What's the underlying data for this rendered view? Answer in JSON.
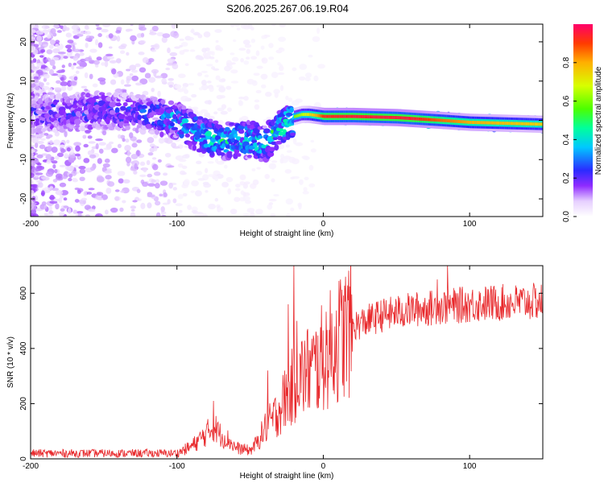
{
  "title": "S206.2025.267.06.19.R04",
  "chart_data": [
    {
      "type": "heatmap",
      "xlabel": "Height of straight line (km)",
      "ylabel": "Frequency (Hz)",
      "xlim": [
        -200,
        150
      ],
      "ylim": [
        -24.5,
        24.5
      ],
      "x_ticks": [
        -200,
        -100,
        0,
        100
      ],
      "y_ticks": [
        -20,
        -10,
        0,
        10,
        20
      ],
      "colorbar": {
        "label": "Normalized spectral amplitude",
        "range": [
          0,
          1
        ],
        "ticks": [
          "0.0",
          "0.2",
          "0.4",
          "0.6",
          "0.8"
        ],
        "tick_values": [
          0.0,
          0.2,
          0.4,
          0.6,
          0.8
        ]
      },
      "ridge_center_hz": [
        [
          -200,
          1.5
        ],
        [
          -150,
          2.5
        ],
        [
          -120,
          1.5
        ],
        [
          -100,
          0
        ],
        [
          -90,
          -2.5
        ],
        [
          -80,
          -4
        ],
        [
          -70,
          -5.5
        ],
        [
          -60,
          -5
        ],
        [
          -50,
          -5
        ],
        [
          -40,
          -6
        ],
        [
          -30,
          -2
        ],
        [
          -20,
          1
        ],
        [
          -15,
          1.5
        ],
        [
          -10,
          1.5
        ],
        [
          0,
          1
        ],
        [
          20,
          1
        ],
        [
          50,
          0.7
        ],
        [
          80,
          0
        ],
        [
          100,
          -0.5
        ],
        [
          150,
          -1
        ]
      ],
      "ridge_amplitude": [
        [
          -200,
          0.25
        ],
        [
          -120,
          0.3
        ],
        [
          -100,
          0.4
        ],
        [
          -70,
          0.5
        ],
        [
          -40,
          0.45
        ],
        [
          -25,
          0.55
        ],
        [
          -15,
          0.65
        ],
        [
          -5,
          0.8
        ],
        [
          0,
          0.92
        ],
        [
          20,
          0.95
        ],
        [
          60,
          0.95
        ],
        [
          75,
          0.88
        ],
        [
          100,
          0.8
        ],
        [
          150,
          0.75
        ]
      ]
    },
    {
      "type": "line",
      "xlabel": "Height of straight line (km)",
      "ylabel": "SNR (10 * v/v)",
      "xlim": [
        -200,
        150
      ],
      "ylim": [
        0,
        700
      ],
      "x_ticks": [
        -200,
        -100,
        0,
        100
      ],
      "y_ticks": [
        0,
        200,
        400,
        600
      ],
      "color": "#e8282b",
      "envelope": [
        [
          -200,
          20
        ],
        [
          -150,
          20
        ],
        [
          -100,
          20
        ],
        [
          -90,
          45
        ],
        [
          -80,
          90
        ],
        [
          -75,
          120
        ],
        [
          -70,
          85
        ],
        [
          -65,
          70
        ],
        [
          -60,
          40
        ],
        [
          -50,
          30
        ],
        [
          -45,
          60
        ],
        [
          -40,
          110
        ],
        [
          -35,
          140
        ],
        [
          -30,
          180
        ],
        [
          -25,
          230
        ],
        [
          -20,
          270
        ],
        [
          -15,
          300
        ],
        [
          -10,
          320
        ],
        [
          -5,
          330
        ],
        [
          0,
          370
        ],
        [
          5,
          400
        ],
        [
          10,
          430
        ],
        [
          15,
          460
        ],
        [
          20,
          480
        ],
        [
          30,
          500
        ],
        [
          40,
          520
        ],
        [
          60,
          540
        ],
        [
          80,
          550
        ],
        [
          100,
          560
        ],
        [
          120,
          565
        ],
        [
          150,
          570
        ]
      ],
      "spikes": [
        [
          -20,
          700
        ],
        [
          -24,
          560
        ],
        [
          -18,
          500
        ],
        [
          85,
          700
        ],
        [
          78,
          650
        ],
        [
          -75,
          210
        ],
        [
          -38,
          320
        ]
      ]
    }
  ]
}
